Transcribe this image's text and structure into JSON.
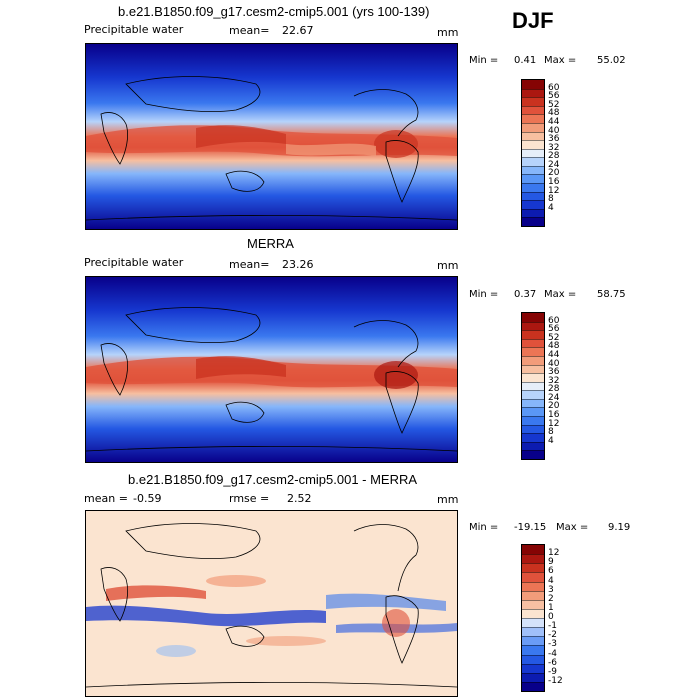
{
  "season": "DJF",
  "colors": {
    "ramp_abs": [
      "#08008a",
      "#0c1bb0",
      "#1637cf",
      "#2458e3",
      "#3a78ef",
      "#5a97f6",
      "#86b6fa",
      "#b6d3fb",
      "#e6eef9",
      "#fbe4d0",
      "#f7bfa0",
      "#f29c7a",
      "#ec7555",
      "#e0523b",
      "#c9321f",
      "#ab1710",
      "#850404"
    ],
    "ramp_diff": [
      "#08008a",
      "#0c1bb0",
      "#1637cf",
      "#2458e3",
      "#3a78ef",
      "#6a9cf6",
      "#a0c0fa",
      "#d5e3fb",
      "#fbe4d0",
      "#f7c0a3",
      "#f29c7a",
      "#ec7555",
      "#e0523b",
      "#c9321f",
      "#ab1710",
      "#850404"
    ]
  },
  "panels": [
    {
      "title": "b.e21.B1850.f09_g17.cesm2-cmip5.001 (yrs 100-139)",
      "variable": "Precipitable water",
      "mean_label": "mean=",
      "mean_value": "22.67",
      "units": "mm",
      "min_label": "Min =",
      "min_value": "0.41",
      "max_label": "Max =",
      "max_value": "55.02",
      "colorbar": [
        "60",
        "56",
        "52",
        "48",
        "44",
        "40",
        "36",
        "32",
        "28",
        "24",
        "20",
        "16",
        "12",
        "8",
        "4"
      ]
    },
    {
      "title": "MERRA",
      "variable": "Precipitable water",
      "mean_label": "mean=",
      "mean_value": "23.26",
      "units": "mm",
      "min_label": "Min =",
      "min_value": "0.37",
      "max_label": "Max =",
      "max_value": "58.75",
      "colorbar": [
        "60",
        "56",
        "52",
        "48",
        "44",
        "40",
        "36",
        "32",
        "28",
        "24",
        "20",
        "16",
        "12",
        "8",
        "4"
      ]
    },
    {
      "title": "b.e21.B1850.f09_g17.cesm2-cmip5.001 - MERRA",
      "variable": "",
      "mean_label": "mean =",
      "mean_value": "-0.59",
      "rmse_label": "rmse =",
      "rmse_value": "2.52",
      "units": "mm",
      "min_label": "Min =",
      "min_value": "-19.15",
      "max_label": "Max =",
      "max_value": "9.19",
      "colorbar": [
        "12",
        "9",
        "6",
        "4",
        "3",
        "2",
        "1",
        "0",
        "-1",
        "-2",
        "-3",
        "-4",
        "-6",
        "-9",
        "-12"
      ]
    }
  ],
  "chart_data": [
    {
      "type": "heatmap",
      "title": "b.e21.B1850.f09_g17.cesm2-cmip5.001 (yrs 100-139)",
      "variable": "Precipitable water",
      "units": "mm",
      "season": "DJF",
      "mean": 22.67,
      "min": 0.41,
      "max": 55.02,
      "levels": [
        4,
        8,
        12,
        16,
        20,
        24,
        28,
        32,
        36,
        40,
        44,
        48,
        52,
        56,
        60
      ]
    },
    {
      "type": "heatmap",
      "title": "MERRA",
      "variable": "Precipitable water",
      "units": "mm",
      "season": "DJF",
      "mean": 23.26,
      "min": 0.37,
      "max": 58.75,
      "levels": [
        4,
        8,
        12,
        16,
        20,
        24,
        28,
        32,
        36,
        40,
        44,
        48,
        52,
        56,
        60
      ]
    },
    {
      "type": "heatmap",
      "title": "b.e21.B1850.f09_g17.cesm2-cmip5.001 - MERRA",
      "units": "mm",
      "season": "DJF",
      "mean": -0.59,
      "rmse": 2.52,
      "min": -19.15,
      "max": 9.19,
      "levels": [
        -12,
        -9,
        -6,
        -4,
        -3,
        -2,
        -1,
        0,
        1,
        2,
        3,
        4,
        6,
        9,
        12
      ]
    }
  ]
}
